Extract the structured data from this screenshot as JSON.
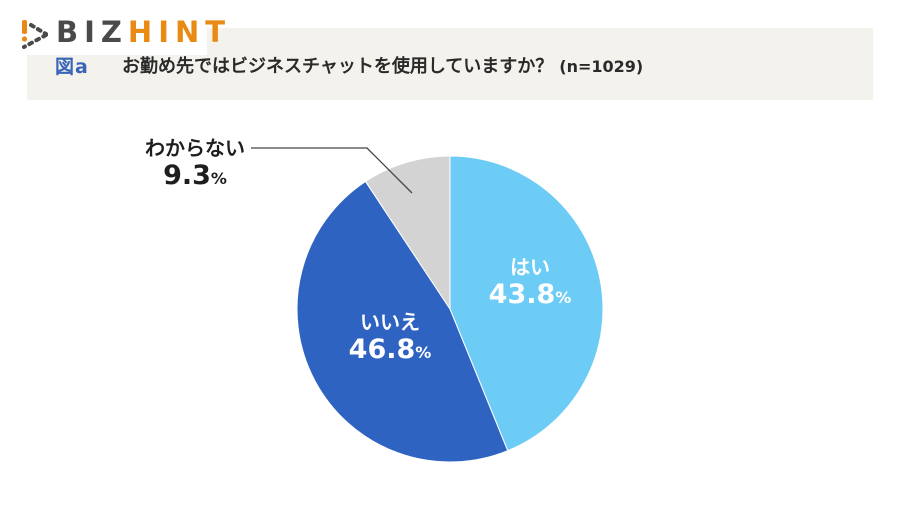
{
  "logo": {
    "part1": "BIZ",
    "part2": "HINT",
    "colors": {
      "dark": "#4a4a4a",
      "accent": "#e98a14"
    }
  },
  "header": {
    "figure_label": "図a",
    "question": "お勤め先ではビジネスチャットを使用していますか？",
    "sample_size": "(n=1029)"
  },
  "chart_data": {
    "type": "pie",
    "title": "お勤め先ではビジネスチャットを使用していますか？ (n=1029)",
    "categories": [
      "はい",
      "いいえ",
      "わからない"
    ],
    "values": [
      43.8,
      46.8,
      9.3
    ],
    "unit": "%",
    "colors": [
      "#6cccf5",
      "#2f63c2",
      "#d3d3d3"
    ],
    "start_angle": "12 o'clock, clockwise",
    "legend": "none (direct labels)",
    "annotations": [
      "わからない slice labeled outside with leader line"
    ]
  },
  "labels": {
    "yes": {
      "name": "はい",
      "value": "43.8",
      "pct": "%"
    },
    "no": {
      "name": "いいえ",
      "value": "46.8",
      "pct": "%"
    },
    "unknown": {
      "name": "わからない",
      "value": "9.3",
      "pct": "%"
    }
  }
}
